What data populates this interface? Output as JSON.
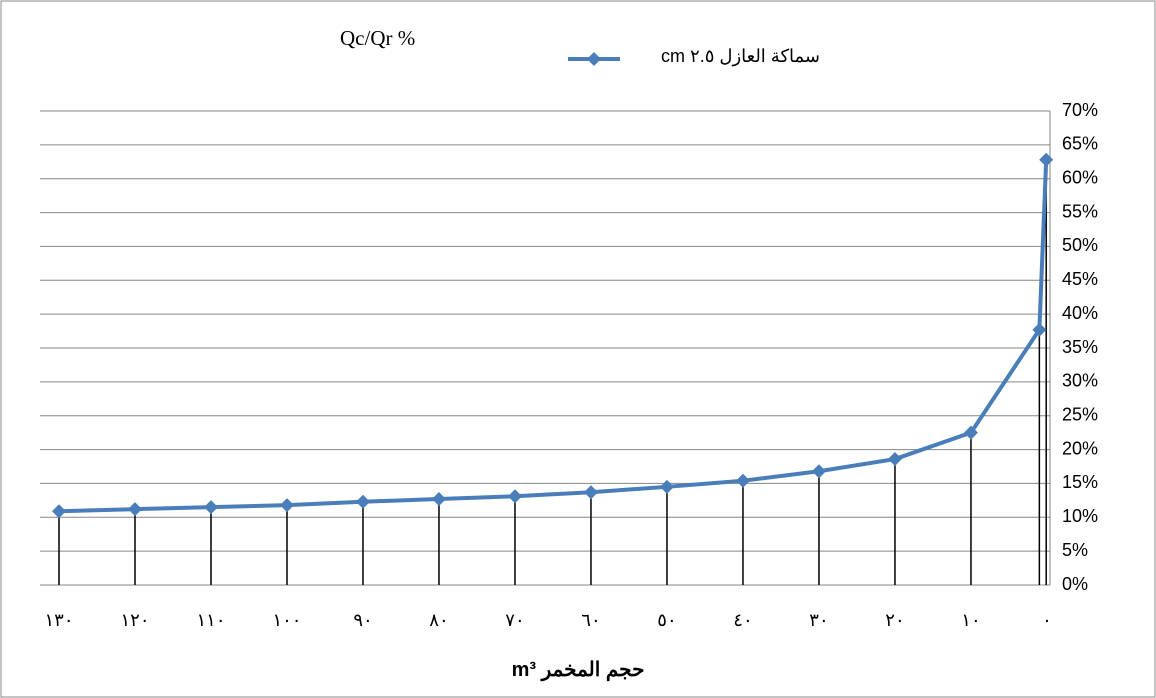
{
  "chart_data": {
    "type": "line",
    "title": "Qc/Qr %",
    "x_label": "حجم المخمر m³",
    "x": [
      0.1,
      1,
      10,
      20,
      30,
      40,
      50,
      60,
      70,
      80,
      90,
      100,
      110,
      120,
      130
    ],
    "series": [
      {
        "name": "سماكة العازل ٢.٥ cm",
        "color": "#4a7ebb",
        "values": [
          62.8,
          37.7,
          22.5,
          18.6,
          16.8,
          15.4,
          14.5,
          13.7,
          13.1,
          12.7,
          12.3,
          11.8,
          11.5,
          11.2,
          10.9
        ]
      }
    ],
    "xlim": [
      132.5,
      -0.4
    ],
    "xticks": [
      {
        "value": 130,
        "label": "١٣٠"
      },
      {
        "value": 120,
        "label": "١٢٠"
      },
      {
        "value": 110,
        "label": "١١٠"
      },
      {
        "value": 100,
        "label": "١٠٠"
      },
      {
        "value": 90,
        "label": "٩٠"
      },
      {
        "value": 80,
        "label": "٨٠"
      },
      {
        "value": 70,
        "label": "٧٠"
      },
      {
        "value": 60,
        "label": "٦٠"
      },
      {
        "value": 50,
        "label": "٥٠"
      },
      {
        "value": 40,
        "label": "٤٠"
      },
      {
        "value": 30,
        "label": "٣٠"
      },
      {
        "value": 20,
        "label": "٢٠"
      },
      {
        "value": 10,
        "label": "١٠"
      },
      {
        "value": 0,
        "label": "٠"
      }
    ],
    "ylim": [
      0,
      70
    ],
    "yticks": [
      {
        "value": 0,
        "label": "0%"
      },
      {
        "value": 5,
        "label": "5%"
      },
      {
        "value": 10,
        "label": "10%"
      },
      {
        "value": 15,
        "label": "15%"
      },
      {
        "value": 20,
        "label": "20%"
      },
      {
        "value": 25,
        "label": "25%"
      },
      {
        "value": 30,
        "label": "30%"
      },
      {
        "value": 35,
        "label": "35%"
      },
      {
        "value": 40,
        "label": "40%"
      },
      {
        "value": 45,
        "label": "45%"
      },
      {
        "value": 50,
        "label": "50%"
      },
      {
        "value": 55,
        "label": "55%"
      },
      {
        "value": 60,
        "label": "60%"
      },
      {
        "value": 65,
        "label": "65%"
      },
      {
        "value": 70,
        "label": "70%"
      }
    ],
    "grid": true,
    "drop_lines": true
  }
}
